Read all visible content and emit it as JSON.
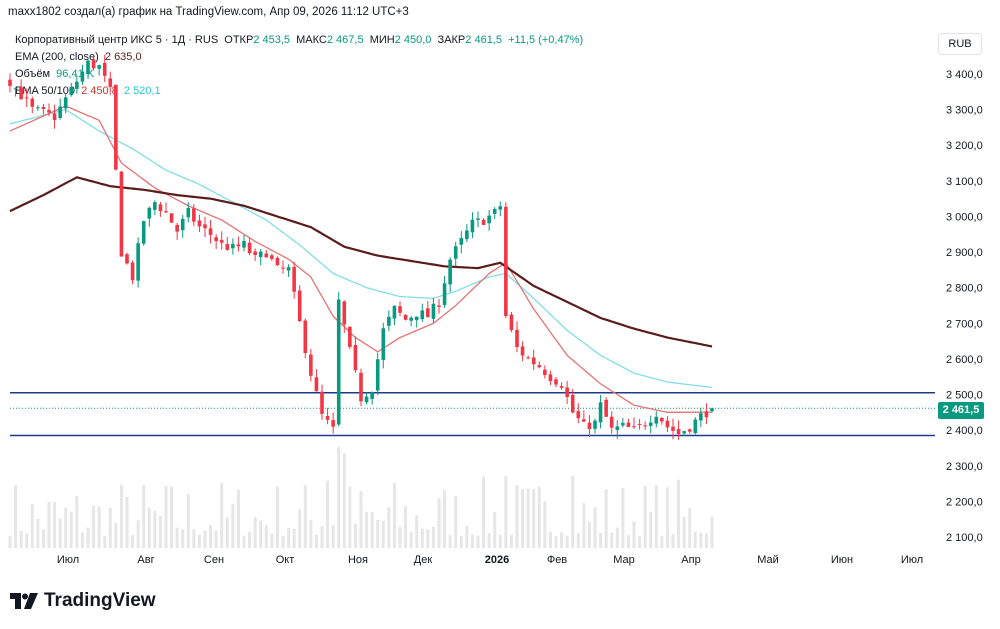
{
  "header": {
    "attribution": "maxx1802 создал(а) график на TradingView.com, Апр 09, 2026 11:12 UTC+3"
  },
  "legend": {
    "symbol": "Корпоративный центр ИКС 5 · 1Д · RUS",
    "open_label": "ОТКР",
    "open_value": "2 453,5",
    "high_label": "МАКС",
    "high_value": "2 467,5",
    "low_label": "МИН",
    "low_value": "2 450,0",
    "close_label": "ЗАКР",
    "close_value": "2 461,5",
    "change": "+11,5 (+0,47%)",
    "ema200_label": "EMA (200, close)",
    "ema200_value": "2 635,0",
    "volume_label": "Объём",
    "volume_value": "96,41 K",
    "ema50_100_label": "EMA 50/100",
    "ema50_value": "2 450,8",
    "ema100_value": "2 520,1"
  },
  "currency": "RUB",
  "last_price": "2 461,5",
  "colors": {
    "up": "#089981",
    "down": "#f23645",
    "ema200": "#5b1c1c",
    "ema50": "#e57373",
    "ema100": "#80deea",
    "level": "#1e3a8a",
    "volume": "#e6e6e6"
  },
  "logo": "TradingView",
  "chart_data": {
    "type": "candlestick",
    "title": "Корпоративный центр ИКС 5 · 1Д · RUS",
    "y_unit": "RUB",
    "ylim": [
      2080,
      3510
    ],
    "y_ticks": [
      "3 400,0",
      "3 300,0",
      "3 200,0",
      "3 100,0",
      "3 000,0",
      "2 900,0",
      "2 800,0",
      "2 700,0",
      "2 600,0",
      "2 500,0",
      "2 400,0",
      "2 300,0",
      "2 200,0",
      "2 100,0"
    ],
    "y_tick_values": [
      3400,
      3300,
      3200,
      3100,
      3000,
      2900,
      2800,
      2700,
      2600,
      2500,
      2400,
      2300,
      2200,
      2100
    ],
    "x_ticks": [
      "Июл",
      "Авг",
      "Сен",
      "Окт",
      "Ноя",
      "Дек",
      "2026",
      "Фев",
      "Мар",
      "Апр",
      "Май",
      "Июн",
      "Июл"
    ],
    "horizontal_levels": [
      2505,
      2385
    ],
    "last_close": 2461.5,
    "price_path": [
      [
        0,
        3380
      ],
      [
        4,
        3300
      ],
      [
        8,
        3280
      ],
      [
        12,
        3380
      ],
      [
        14,
        3430
      ],
      [
        16,
        3420
      ],
      [
        18,
        3350
      ],
      [
        20,
        2900
      ],
      [
        22,
        2830
      ],
      [
        24,
        2990
      ],
      [
        26,
        3040
      ],
      [
        28,
        3010
      ],
      [
        30,
        2960
      ],
      [
        32,
        3010
      ],
      [
        34,
        2970
      ],
      [
        36,
        2950
      ],
      [
        38,
        2920
      ],
      [
        40,
        2910
      ],
      [
        42,
        2920
      ],
      [
        44,
        2880
      ],
      [
        46,
        2900
      ],
      [
        48,
        2850
      ],
      [
        50,
        2850
      ],
      [
        52,
        2700
      ],
      [
        54,
        2560
      ],
      [
        56,
        2440
      ],
      [
        58,
        2400
      ],
      [
        59,
        2760
      ],
      [
        61,
        2620
      ],
      [
        63,
        2490
      ],
      [
        65,
        2520
      ],
      [
        67,
        2680
      ],
      [
        69,
        2740
      ],
      [
        71,
        2710
      ],
      [
        73,
        2730
      ],
      [
        75,
        2720
      ],
      [
        77,
        2760
      ],
      [
        79,
        2880
      ],
      [
        81,
        2930
      ],
      [
        83,
        2980
      ],
      [
        85,
        2990
      ],
      [
        87,
        3010
      ],
      [
        88,
        3030
      ],
      [
        89,
        2720
      ],
      [
        91,
        2630
      ],
      [
        93,
        2600
      ],
      [
        95,
        2580
      ],
      [
        97,
        2550
      ],
      [
        99,
        2530
      ],
      [
        101,
        2450
      ],
      [
        103,
        2410
      ],
      [
        105,
        2420
      ],
      [
        106,
        2470
      ],
      [
        108,
        2400
      ],
      [
        110,
        2410
      ],
      [
        112,
        2400
      ],
      [
        114,
        2420
      ],
      [
        116,
        2450
      ],
      [
        118,
        2410
      ],
      [
        120,
        2390
      ],
      [
        122,
        2410
      ],
      [
        124,
        2440
      ],
      [
        126,
        2461.5
      ]
    ],
    "ema200_path": [
      [
        0,
        3015
      ],
      [
        6,
        3060
      ],
      [
        12,
        3110
      ],
      [
        18,
        3085
      ],
      [
        24,
        3075
      ],
      [
        30,
        3060
      ],
      [
        36,
        3050
      ],
      [
        42,
        3030
      ],
      [
        48,
        3000
      ],
      [
        54,
        2970
      ],
      [
        60,
        2915
      ],
      [
        66,
        2890
      ],
      [
        72,
        2875
      ],
      [
        78,
        2860
      ],
      [
        84,
        2855
      ],
      [
        88,
        2870
      ],
      [
        94,
        2805
      ],
      [
        100,
        2760
      ],
      [
        106,
        2715
      ],
      [
        112,
        2685
      ],
      [
        118,
        2660
      ],
      [
        126,
        2635
      ]
    ],
    "ema50_path": [
      [
        0,
        3240
      ],
      [
        10,
        3310
      ],
      [
        16,
        3270
      ],
      [
        20,
        3150
      ],
      [
        26,
        3080
      ],
      [
        32,
        3030
      ],
      [
        38,
        2990
      ],
      [
        44,
        2930
      ],
      [
        50,
        2880
      ],
      [
        54,
        2830
      ],
      [
        58,
        2720
      ],
      [
        62,
        2660
      ],
      [
        66,
        2620
      ],
      [
        70,
        2660
      ],
      [
        76,
        2700
      ],
      [
        80,
        2750
      ],
      [
        86,
        2840
      ],
      [
        89,
        2870
      ],
      [
        94,
        2740
      ],
      [
        100,
        2610
      ],
      [
        106,
        2530
      ],
      [
        112,
        2470
      ],
      [
        118,
        2450
      ],
      [
        126,
        2450.8
      ]
    ],
    "ema100_path": [
      [
        0,
        3260
      ],
      [
        10,
        3300
      ],
      [
        16,
        3240
      ],
      [
        22,
        3190
      ],
      [
        28,
        3130
      ],
      [
        34,
        3090
      ],
      [
        40,
        3040
      ],
      [
        46,
        2990
      ],
      [
        52,
        2920
      ],
      [
        58,
        2840
      ],
      [
        64,
        2800
      ],
      [
        70,
        2775
      ],
      [
        76,
        2770
      ],
      [
        80,
        2790
      ],
      [
        86,
        2830
      ],
      [
        89,
        2840
      ],
      [
        94,
        2770
      ],
      [
        100,
        2680
      ],
      [
        106,
        2610
      ],
      [
        112,
        2560
      ],
      [
        118,
        2535
      ],
      [
        126,
        2520.1
      ]
    ],
    "volume_max_k": 600
  }
}
